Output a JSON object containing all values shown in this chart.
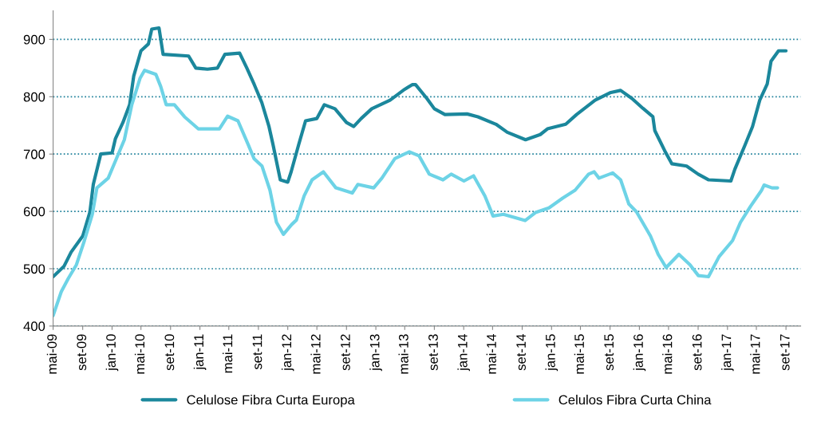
{
  "chart_data": {
    "type": "line",
    "xlim": [
      "2009-05-01",
      "2017-11-01"
    ],
    "ylim": [
      400,
      950
    ],
    "yticks": [
      400,
      500,
      600,
      700,
      800,
      900
    ],
    "xticks": [
      {
        "value": "2009-05-01",
        "label": "mai-09"
      },
      {
        "value": "2009-09-01",
        "label": "set-09"
      },
      {
        "value": "2010-01-01",
        "label": "jan-10"
      },
      {
        "value": "2010-05-01",
        "label": "mai-10"
      },
      {
        "value": "2010-09-01",
        "label": "set-10"
      },
      {
        "value": "2011-01-01",
        "label": "jan-11"
      },
      {
        "value": "2011-05-01",
        "label": "mai-11"
      },
      {
        "value": "2011-09-01",
        "label": "set-11"
      },
      {
        "value": "2012-01-01",
        "label": "jan-12"
      },
      {
        "value": "2012-05-01",
        "label": "mai-12"
      },
      {
        "value": "2012-09-01",
        "label": "set-12"
      },
      {
        "value": "2013-01-01",
        "label": "jan-13"
      },
      {
        "value": "2013-05-01",
        "label": "mai-13"
      },
      {
        "value": "2013-09-01",
        "label": "set-13"
      },
      {
        "value": "2014-01-01",
        "label": "jan-14"
      },
      {
        "value": "2014-05-01",
        "label": "mai-14"
      },
      {
        "value": "2014-09-01",
        "label": "set-14"
      },
      {
        "value": "2015-01-01",
        "label": "jan-15"
      },
      {
        "value": "2015-05-01",
        "label": "mai-15"
      },
      {
        "value": "2015-09-01",
        "label": "set-15"
      },
      {
        "value": "2016-01-01",
        "label": "jan-16"
      },
      {
        "value": "2016-05-01",
        "label": "mai-16"
      },
      {
        "value": "2016-09-01",
        "label": "set-16"
      },
      {
        "value": "2017-01-01",
        "label": "jan-17"
      },
      {
        "value": "2017-05-01",
        "label": "mai-17"
      },
      {
        "value": "2017-09-01",
        "label": "set-17"
      }
    ],
    "grid": "y",
    "legend": "bottom",
    "series": [
      {
        "name": "Celulose Fibra Curta Europa",
        "color": "#1b879c",
        "x": [
          "2009-05-01",
          "2009-06-15",
          "2009-07-15",
          "2009-09-01",
          "2009-10-01",
          "2009-10-15",
          "2009-11-15",
          "2010-01-01",
          "2010-01-15",
          "2010-02-15",
          "2010-03-15",
          "2010-04-01",
          "2010-05-01",
          "2010-06-01",
          "2010-06-15",
          "2010-07-15",
          "2010-08-01",
          "2010-11-15",
          "2010-12-15",
          "2011-02-01",
          "2011-03-15",
          "2011-04-15",
          "2011-06-15",
          "2011-07-15",
          "2011-08-15",
          "2011-09-15",
          "2011-10-15",
          "2011-11-01",
          "2011-12-01",
          "2012-01-01",
          "2012-01-15",
          "2012-02-15",
          "2012-03-15",
          "2012-05-01",
          "2012-06-01",
          "2012-07-15",
          "2012-09-01",
          "2012-10-01",
          "2012-11-01",
          "2012-12-15",
          "2013-03-01",
          "2013-05-01",
          "2013-06-01",
          "2013-06-15",
          "2013-08-01",
          "2013-09-01",
          "2013-10-15",
          "2014-01-15",
          "2014-03-01",
          "2014-05-15",
          "2014-07-01",
          "2014-09-15",
          "2014-11-15",
          "2014-12-15",
          "2015-03-01",
          "2015-04-15",
          "2015-07-01",
          "2015-09-01",
          "2015-10-15",
          "2015-12-01",
          "2016-01-15",
          "2016-02-26",
          "2016-03-05",
          "2016-04-15",
          "2016-05-15",
          "2016-07-15",
          "2016-09-01",
          "2016-10-15",
          "2017-01-15",
          "2017-02-01",
          "2017-03-15",
          "2017-04-15",
          "2017-05-15",
          "2017-06-15",
          "2017-07-01",
          "2017-08-01",
          "2017-09-01"
        ],
        "values": [
          486,
          504,
          529,
          557,
          599,
          647,
          700,
          702,
          727,
          755,
          786,
          836,
          880,
          892,
          918,
          920,
          874,
          871,
          850,
          848,
          850,
          874,
          876,
          850,
          821,
          790,
          748,
          716,
          655,
          651,
          669,
          716,
          758,
          762,
          786,
          779,
          755,
          748,
          762,
          779,
          794,
          813,
          821,
          821,
          797,
          779,
          769,
          770,
          765,
          752,
          738,
          725,
          734,
          744,
          752,
          769,
          794,
          807,
          811,
          797,
          780,
          765,
          741,
          706,
          683,
          679,
          665,
          655,
          653,
          674,
          716,
          748,
          794,
          822,
          862,
          880,
          880
        ]
      },
      {
        "name": "Celulos Fibra Curta China",
        "color": "#6dd3e6",
        "x": [
          "2009-05-01",
          "2009-06-04",
          "2009-07-03",
          "2009-08-06",
          "2009-09-08",
          "2009-10-11",
          "2009-10-30",
          "2009-12-16",
          "2010-01-19",
          "2010-02-21",
          "2010-03-24",
          "2010-04-27",
          "2010-05-16",
          "2010-07-02",
          "2010-07-22",
          "2010-08-14",
          "2010-09-17",
          "2010-10-29",
          "2010-12-25",
          "2011-03-23",
          "2011-04-26",
          "2011-06-08",
          "2011-07-21",
          "2011-08-14",
          "2011-09-16",
          "2011-10-19",
          "2011-11-15",
          "2011-12-14",
          "2012-01-17",
          "2012-02-06",
          "2012-03-09",
          "2012-04-11",
          "2012-05-28",
          "2012-07-19",
          "2012-09-25",
          "2012-10-18",
          "2012-12-23",
          "2013-01-26",
          "2013-03-21",
          "2013-05-20",
          "2013-06-29",
          "2013-08-11",
          "2013-10-07",
          "2013-11-10",
          "2014-01-02",
          "2014-02-11",
          "2014-03-30",
          "2014-05-03",
          "2014-06-15",
          "2014-09-13",
          "2014-10-26",
          "2014-12-21",
          "2015-02-16",
          "2015-04-09",
          "2015-06-04",
          "2015-06-27",
          "2015-07-17",
          "2015-09-12",
          "2015-10-15",
          "2015-11-18",
          "2015-12-20",
          "2016-02-16",
          "2016-03-19",
          "2016-04-21",
          "2016-06-13",
          "2016-07-29",
          "2016-09-02",
          "2016-10-14",
          "2016-11-27",
          "2017-01-22",
          "2017-02-24",
          "2017-04-07",
          "2017-05-23",
          "2017-06-02",
          "2017-07-05",
          "2017-07-28"
        ],
        "values": [
          418,
          460,
          483,
          507,
          549,
          595,
          641,
          658,
          692,
          725,
          786,
          832,
          846,
          839,
          818,
          786,
          786,
          765,
          744,
          744,
          766,
          758,
          716,
          692,
          679,
          637,
          581,
          560,
          577,
          585,
          627,
          655,
          669,
          641,
          632,
          647,
          641,
          658,
          692,
          704,
          697,
          665,
          655,
          665,
          653,
          662,
          627,
          592,
          595,
          584,
          598,
          606,
          623,
          637,
          665,
          669,
          658,
          667,
          655,
          613,
          599,
          557,
          525,
          502,
          525,
          507,
          488,
          486,
          521,
          549,
          581,
          609,
          637,
          646,
          641,
          641
        ]
      }
    ]
  }
}
